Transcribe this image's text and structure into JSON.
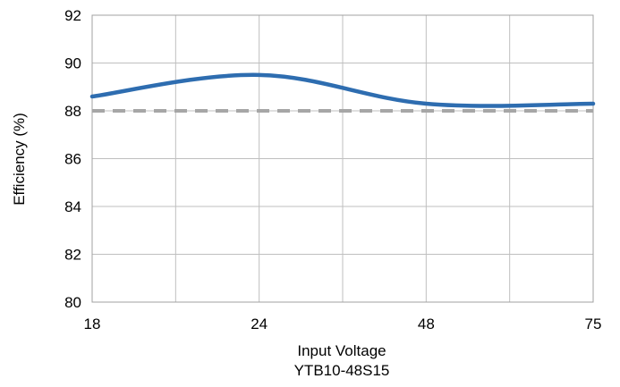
{
  "chart_data": {
    "type": "line",
    "title": "",
    "xlabel": "Input Voltage",
    "subtitle": "YTB10-48S15",
    "ylabel": "Efficiency (%)",
    "x_categories": [
      "18",
      "24",
      "48",
      "75"
    ],
    "ylim": [
      80,
      92
    ],
    "y_ticks": [
      "80",
      "82",
      "84",
      "86",
      "88",
      "90",
      "92"
    ],
    "grid": true,
    "legend": "none",
    "series": [
      {
        "style": "solid",
        "color": "#2E6DB0",
        "points": [
          {
            "x": "18",
            "y": 88.6
          },
          {
            "x": "24",
            "y": 89.5
          },
          {
            "x": "48",
            "y": 88.3
          },
          {
            "x": "75",
            "y": 88.3
          }
        ]
      },
      {
        "style": "dashed",
        "color": "#A6A6A6",
        "points": [
          {
            "x": "18",
            "y": 88.0
          },
          {
            "x": "24",
            "y": 88.0
          },
          {
            "x": "48",
            "y": 88.0
          },
          {
            "x": "75",
            "y": 88.0
          }
        ]
      }
    ]
  }
}
